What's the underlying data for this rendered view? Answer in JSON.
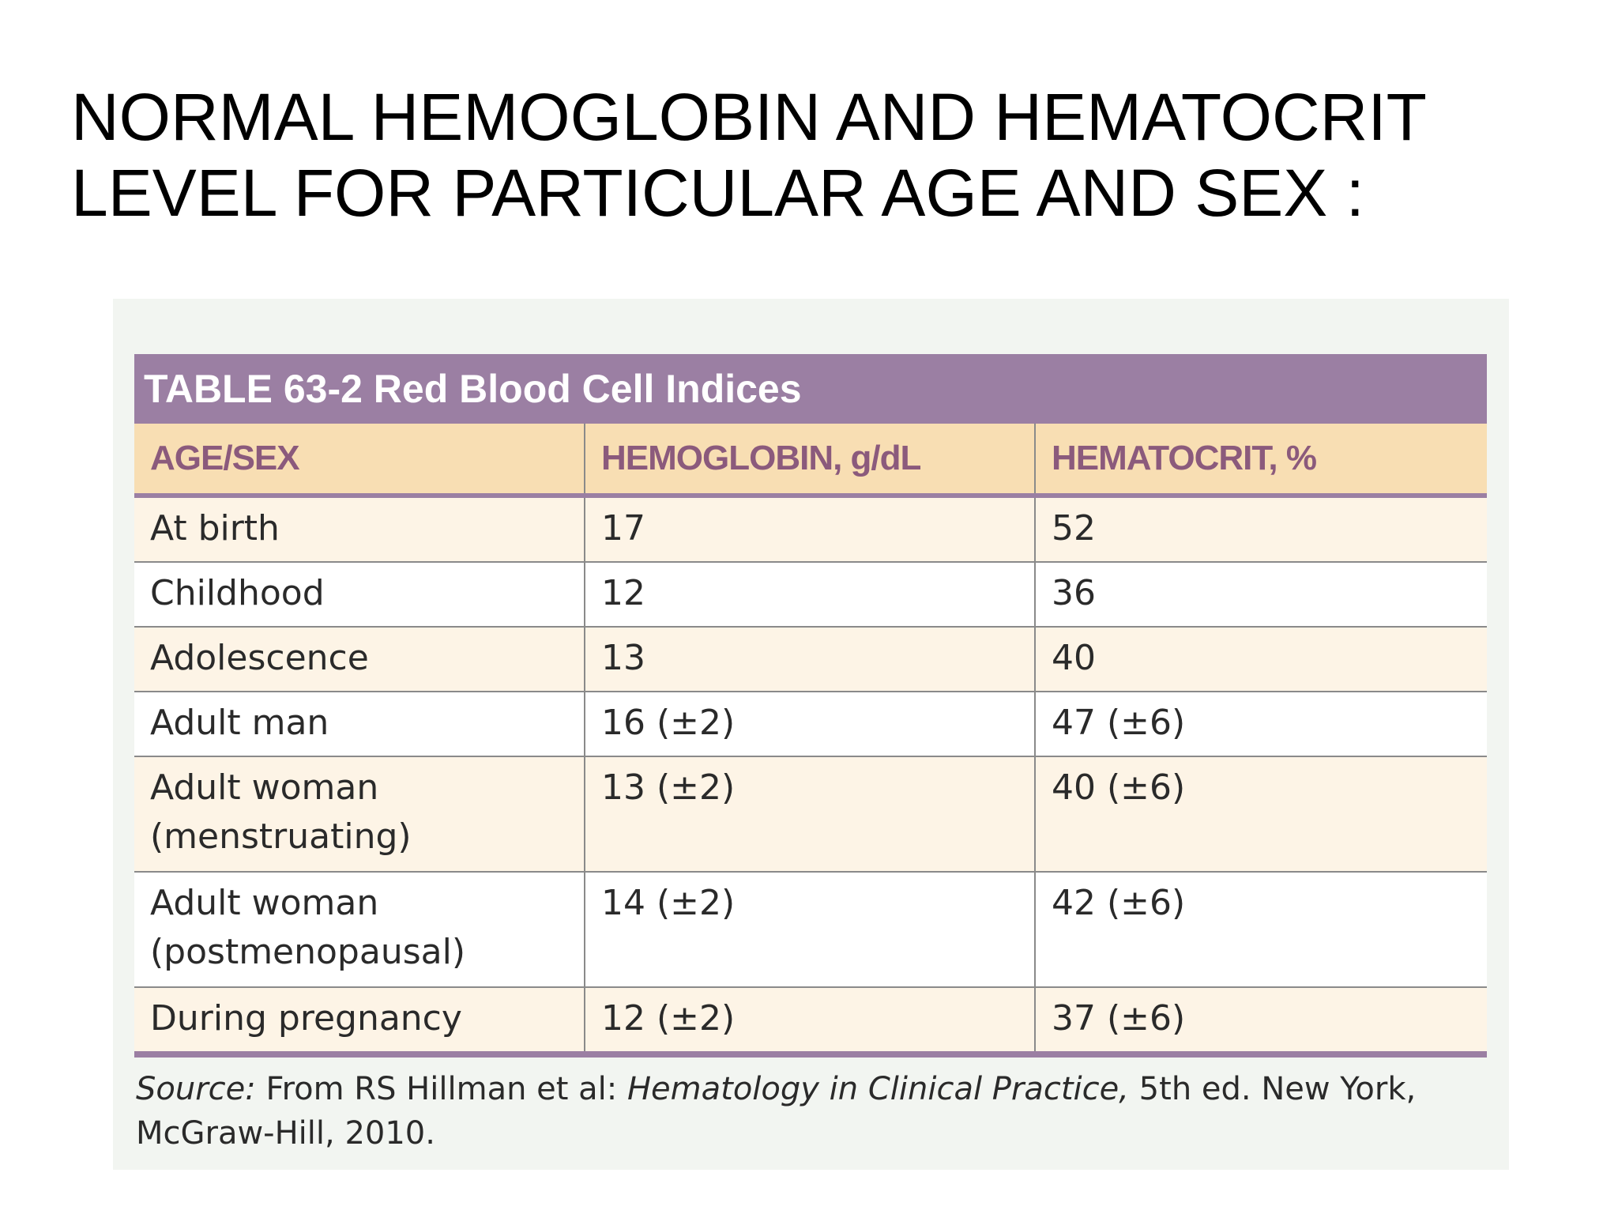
{
  "slide": {
    "title_line1": "NORMAL HEMOGLOBIN AND HEMATOCRIT",
    "title_line2": "LEVEL FOR PARTICULAR AGE AND SEX :"
  },
  "table": {
    "caption": "TABLE 63-2 Red Blood Cell Indices",
    "headers": [
      "AGE/SEX",
      "HEMOGLOBIN, g/dL",
      "HEMATOCRIT, %"
    ],
    "rows": [
      {
        "age_sex": "At birth",
        "hemoglobin": "17",
        "hematocrit": "52"
      },
      {
        "age_sex": "Childhood",
        "hemoglobin": "12",
        "hematocrit": "36"
      },
      {
        "age_sex": "Adolescence",
        "hemoglobin": "13",
        "hematocrit": "40"
      },
      {
        "age_sex": "Adult man",
        "hemoglobin": "16 (±2)",
        "hematocrit": "47 (±6)"
      },
      {
        "age_sex_line1": "Adult woman",
        "age_sex_line2": "(menstruating)",
        "hemoglobin": "13 (±2)",
        "hematocrit": "40 (±6)"
      },
      {
        "age_sex_line1": "Adult woman",
        "age_sex_line2": "(postmenopausal)",
        "hemoglobin": "14 (±2)",
        "hematocrit": "42 (±6)"
      },
      {
        "age_sex": "During pregnancy",
        "hemoglobin": "12 (±2)",
        "hematocrit": "37 (±6)"
      }
    ],
    "source": {
      "label": "Source:",
      "text1": " From RS Hillman et al: ",
      "book": "Hematology in Clinical Practice,",
      "text2": " 5th ed. New York,",
      "line2": "McGraw-Hill, 2010."
    }
  },
  "colors": {
    "caption_bg": "#9b7fa3",
    "header_bg": "#f8deb3",
    "header_text": "#8b5a7c",
    "row_tint": "#fdf4e6",
    "panel_bg": "#f2f5f1"
  }
}
